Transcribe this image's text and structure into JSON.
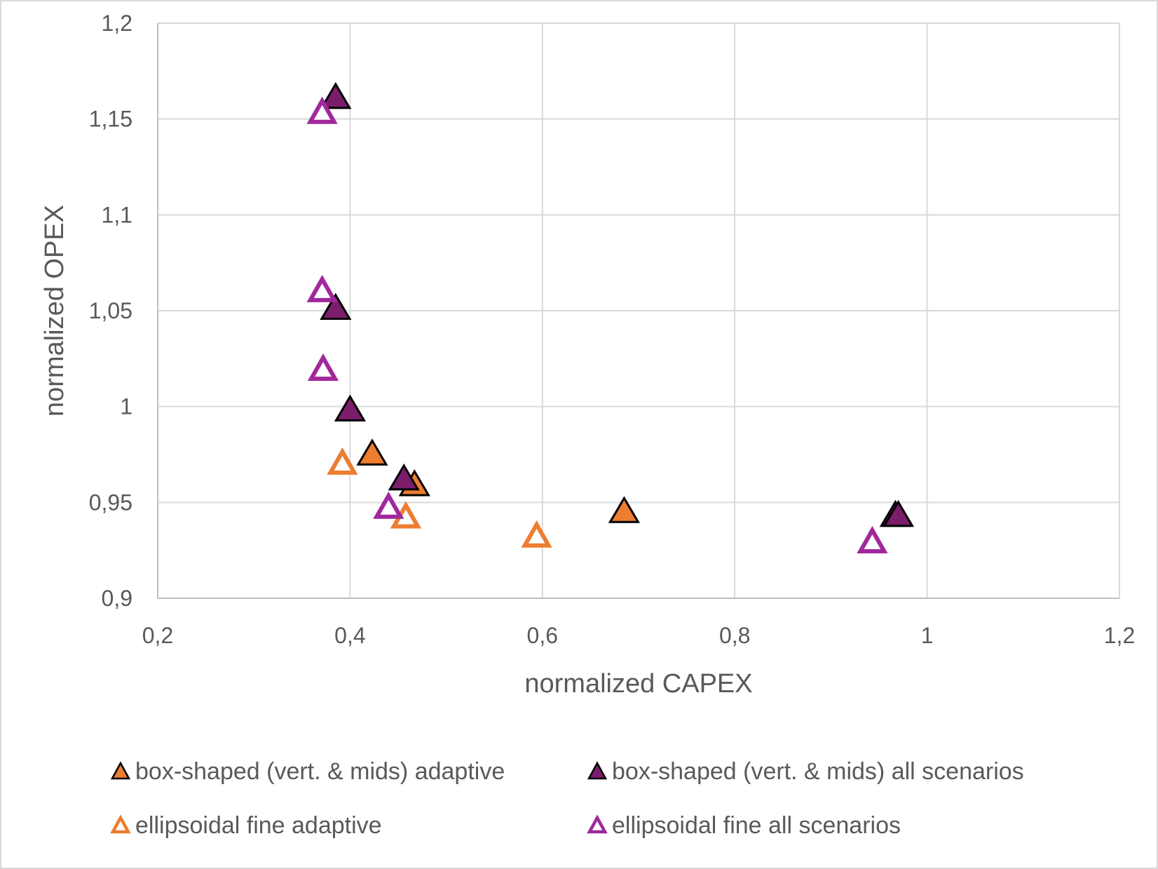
{
  "chart_data": {
    "type": "scatter",
    "title": "",
    "xlabel": "normalized CAPEX",
    "ylabel": "normalized OPEX",
    "xlim": [
      0.2,
      1.2
    ],
    "ylim": [
      0.9,
      1.2
    ],
    "grid": true,
    "legend_position": "bottom",
    "x_ticks": [
      {
        "value": 0.2,
        "label": "0,2"
      },
      {
        "value": 0.4,
        "label": "0,4"
      },
      {
        "value": 0.6,
        "label": "0,6"
      },
      {
        "value": 0.8,
        "label": "0,8"
      },
      {
        "value": 1.0,
        "label": "1"
      },
      {
        "value": 1.2,
        "label": "1,2"
      }
    ],
    "y_ticks": [
      {
        "value": 0.9,
        "label": "0,9"
      },
      {
        "value": 0.95,
        "label": "0,95"
      },
      {
        "value": 1.0,
        "label": "1"
      },
      {
        "value": 1.05,
        "label": "1,05"
      },
      {
        "value": 1.1,
        "label": "1,1"
      },
      {
        "value": 1.15,
        "label": "1,15"
      },
      {
        "value": 1.2,
        "label": "1,2"
      }
    ],
    "series": [
      {
        "name": "box-shaped (vert. & mids) adaptive",
        "marker": "triangle-filled",
        "color": "#ed7d31",
        "edge_color": "#000000",
        "points": [
          {
            "x": 0.423,
            "y": 0.976
          },
          {
            "x": 0.467,
            "y": 0.96
          },
          {
            "x": 0.685,
            "y": 0.946
          }
        ]
      },
      {
        "name": "box-shaped (vert. & mids) all scenarios",
        "marker": "triangle-filled",
        "color": "#7b1d6b",
        "edge_color": "#000000",
        "points": [
          {
            "x": 0.385,
            "y": 1.162
          },
          {
            "x": 0.385,
            "y": 1.052
          },
          {
            "x": 0.4,
            "y": 0.999
          },
          {
            "x": 0.456,
            "y": 0.963
          },
          {
            "x": 0.967,
            "y": 0.944
          },
          {
            "x": 0.97,
            "y": 0.944
          }
        ]
      },
      {
        "name": "ellipsoidal fine adaptive",
        "marker": "triangle-open",
        "color": "#ed7d31",
        "points": [
          {
            "x": 0.392,
            "y": 0.971
          },
          {
            "x": 0.458,
            "y": 0.943
          },
          {
            "x": 0.594,
            "y": 0.933
          }
        ]
      },
      {
        "name": "ellipsoidal fine all scenarios",
        "marker": "triangle-open",
        "color": "#a0289c",
        "points": [
          {
            "x": 0.371,
            "y": 1.154
          },
          {
            "x": 0.371,
            "y": 1.061
          },
          {
            "x": 0.372,
            "y": 1.02
          },
          {
            "x": 0.44,
            "y": 0.948
          },
          {
            "x": 0.943,
            "y": 0.93
          }
        ]
      }
    ]
  }
}
